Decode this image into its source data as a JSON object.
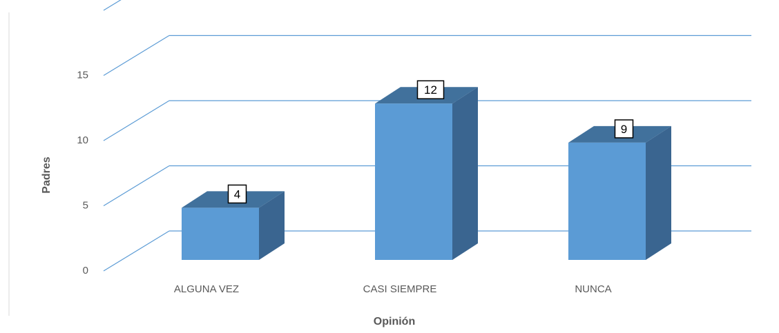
{
  "chart_data": {
    "type": "bar",
    "categories": [
      "ALGUNA VEZ",
      "CASI SIEMPRE",
      "NUNCA"
    ],
    "values": [
      4,
      12,
      9
    ],
    "data_labels": [
      "4",
      "12",
      "9"
    ],
    "yticks": [
      "0",
      "5",
      "10",
      "15"
    ],
    "title": "",
    "xlabel": "Opinión",
    "ylabel": "Padres",
    "ylim": [
      0,
      20
    ],
    "grid": true,
    "legend": "none",
    "colors": {
      "bar_front": "#5b9bd5",
      "bar_side": "#3a6590",
      "bar_top": "#41719c",
      "gridline": "#5b9bd5"
    }
  }
}
